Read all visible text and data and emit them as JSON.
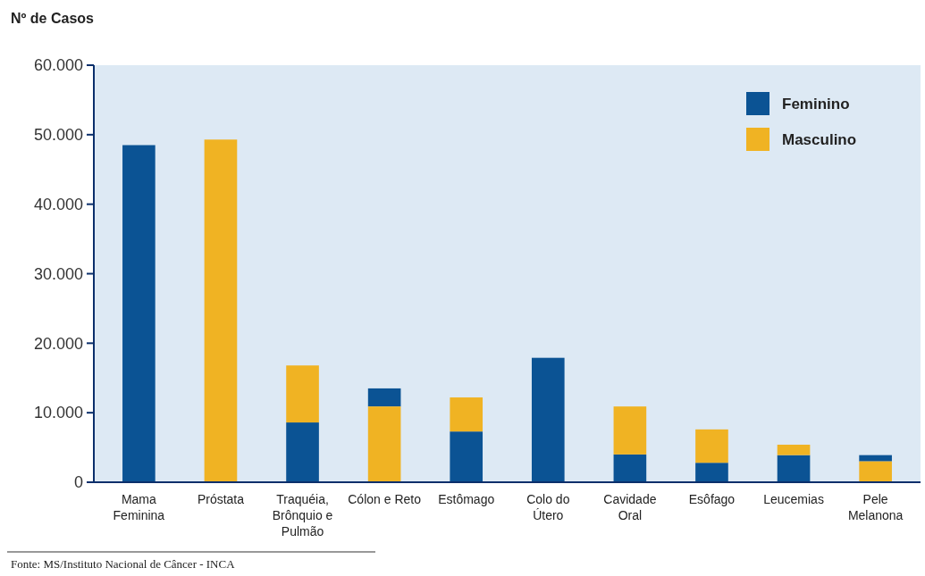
{
  "chart_data": {
    "type": "bar",
    "ylabel": "Nº de Casos",
    "categories": [
      "Mama Feminina",
      "Próstata",
      "Traquéia, Brônquio e Pulmão",
      "Cólon e Reto",
      "Estômago",
      "Colo do Útero",
      "Cavidade Oral",
      "Esôfago",
      "Leucemias",
      "Pele Melanona"
    ],
    "series": [
      {
        "name": "Feminino",
        "color": "#0b5394",
        "values": [
          48500,
          null,
          8600,
          2600,
          7300,
          17900,
          4000,
          2800,
          3900,
          900
        ],
        "base": [
          0,
          null,
          0,
          10900,
          0,
          0,
          0,
          0,
          0,
          3000
        ]
      },
      {
        "name": "Masculino",
        "color": "#f0b323",
        "values": [
          null,
          49300,
          8200,
          10900,
          4900,
          null,
          6900,
          4800,
          1500,
          3000
        ],
        "base": [
          null,
          0,
          8600,
          0,
          7300,
          null,
          4000,
          2800,
          3900,
          0
        ]
      }
    ],
    "ylim": [
      0,
      60000
    ],
    "yticks": [
      {
        "value": 0,
        "label": "0"
      },
      {
        "value": 10000,
        "label": "10.000"
      },
      {
        "value": 20000,
        "label": "20.000"
      },
      {
        "value": 30000,
        "label": "30.000"
      },
      {
        "value": 40000,
        "label": "40.000"
      },
      {
        "value": 50000,
        "label": "50.000"
      },
      {
        "value": 60000,
        "label": "60.000"
      }
    ],
    "grid": false,
    "legend": "top right",
    "annotations": [
      "Fonte: MS/Instituto Nacional de Câncer - INCA"
    ]
  }
}
